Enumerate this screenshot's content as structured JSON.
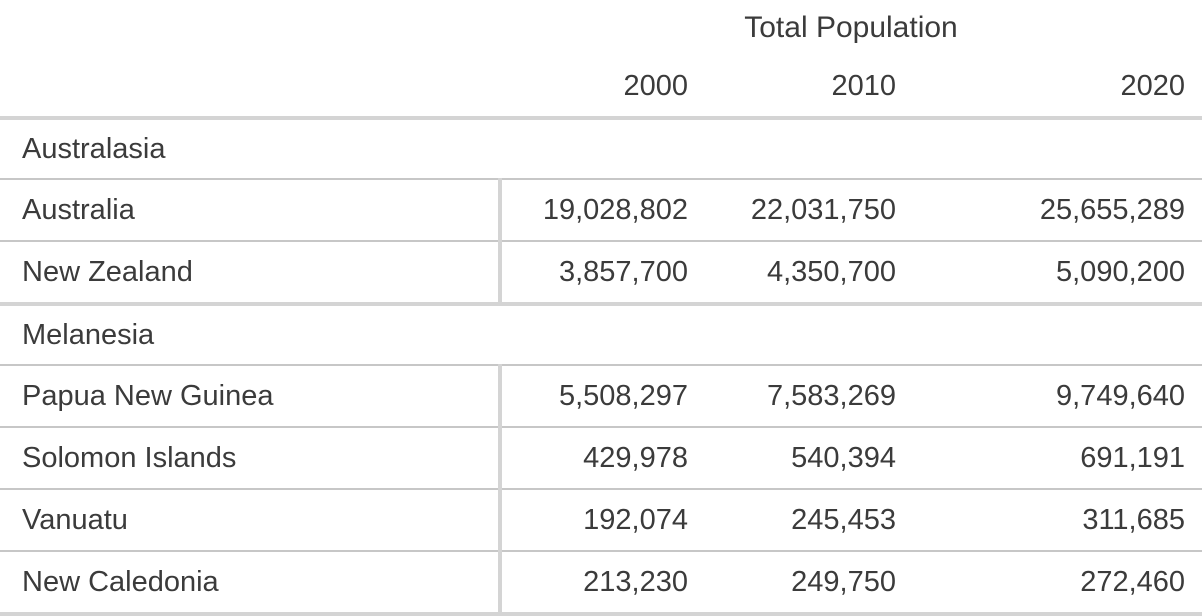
{
  "chart_data": {
    "type": "table",
    "title": "Total Population",
    "year_columns": [
      "2000",
      "2010",
      "2020"
    ],
    "sections": [
      {
        "name": "Australasia",
        "rows": [
          {
            "label": "Australia",
            "values": [
              "19,028,802",
              "22,031,750",
              "25,655,289"
            ],
            "values_numeric": [
              19028802,
              22031750,
              25655289
            ]
          },
          {
            "label": "New Zealand",
            "values": [
              "3,857,700",
              "4,350,700",
              "5,090,200"
            ],
            "values_numeric": [
              3857700,
              4350700,
              5090200
            ]
          }
        ]
      },
      {
        "name": "Melanesia",
        "rows": [
          {
            "label": "Papua New Guinea",
            "values": [
              "5,508,297",
              "7,583,269",
              "9,749,640"
            ],
            "values_numeric": [
              5508297,
              7583269,
              9749640
            ]
          },
          {
            "label": "Solomon Islands",
            "values": [
              "429,978",
              "540,394",
              "691,191"
            ],
            "values_numeric": [
              429978,
              540394,
              691191
            ]
          },
          {
            "label": "Vanuatu",
            "values": [
              "192,074",
              "245,453",
              "311,685"
            ],
            "values_numeric": [
              192074,
              245453,
              311685
            ]
          },
          {
            "label": "New Caledonia",
            "values": [
              "213,230",
              "249,750",
              "272,460"
            ],
            "values_numeric": [
              213230,
              249750,
              272460
            ]
          }
        ]
      }
    ],
    "layout": {
      "grid": "horizontal rules only, vertical divider after label column",
      "value_alignment": "right"
    }
  },
  "colors": {
    "text": "#3b3b3b",
    "rule_thin": "#c7c7c7",
    "rule_thick": "#d4d4d4",
    "background": "#ffffff"
  }
}
